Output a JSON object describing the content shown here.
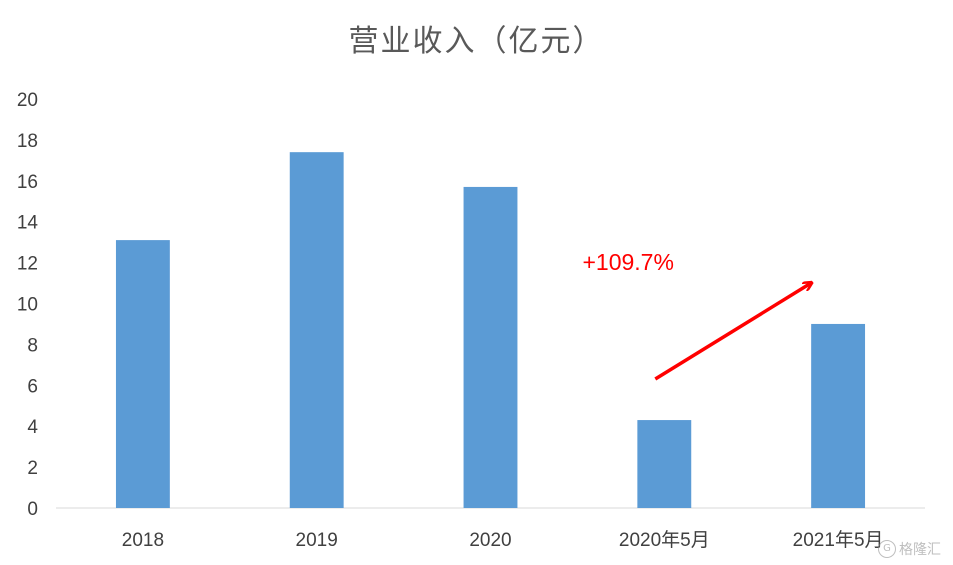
{
  "chart_data": {
    "type": "bar",
    "title": "营业收入（亿元）",
    "categories": [
      "2018",
      "2019",
      "2020",
      "2020年5月",
      "2021年5月"
    ],
    "values": [
      13.1,
      17.4,
      15.7,
      4.3,
      9.0
    ],
    "ylim": [
      0,
      20
    ],
    "yticks": [
      0,
      2,
      4,
      6,
      8,
      10,
      12,
      14,
      16,
      18,
      20
    ],
    "bar_color": "#5b9bd5",
    "grid": false,
    "annotation": {
      "text": "+109.7%",
      "color": "#ff0000",
      "arrow_from_category": "2020年5月",
      "arrow_to_category": "2021年5月"
    }
  },
  "watermark": {
    "text": "格隆汇",
    "logo_text": "G"
  }
}
